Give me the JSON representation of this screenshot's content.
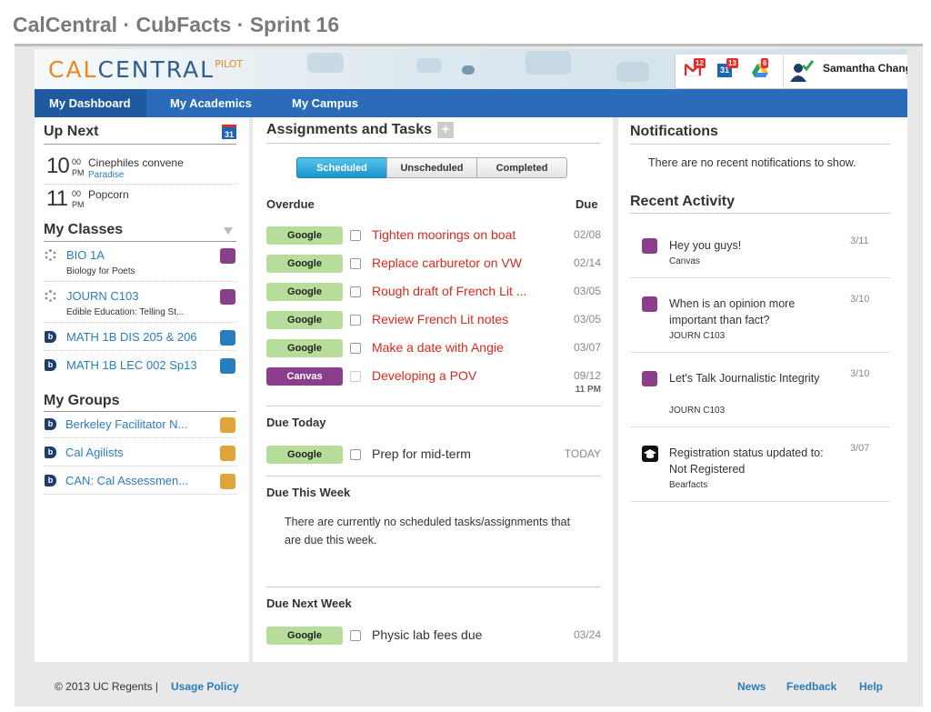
{
  "deck_title": "CalCentral · CubFacts · Sprint 16",
  "brand": {
    "cal": "CAL",
    "central": "CENTRAL",
    "pilot": "PILOT"
  },
  "toolbar": {
    "gmail_count": "12",
    "calendar_count": "13",
    "drive_count": "6",
    "user_name": "Samantha Chang",
    "calendar_icon_text": "31"
  },
  "nav": {
    "tabs": [
      "My Dashboard",
      "My Academics",
      "My Campus"
    ]
  },
  "upnext": {
    "title": "Up Next",
    "calendar_badge": "31",
    "events": [
      {
        "hour": "10",
        "min": "00",
        "ampm": "PM",
        "name": "Cinephiles convene",
        "location": "Paradise"
      },
      {
        "hour": "11",
        "min": "00",
        "ampm": "PM",
        "name": "Popcorn",
        "location": ""
      }
    ]
  },
  "classes": {
    "title": "My Classes",
    "items": [
      {
        "name": "BIO 1A",
        "sub": "Biology for Poets",
        "color": "#8b3e8b",
        "icon": "loading-spinner-icon"
      },
      {
        "name": "JOURN C103",
        "sub": "Edible Education: Telling St...",
        "color": "#8b3e8b",
        "icon": "loading-spinner-icon"
      },
      {
        "name": "MATH 1B DIS 205 & 206",
        "sub": "",
        "color": "#2a7dbd",
        "icon": "bspace-icon"
      },
      {
        "name": "MATH 1B LEC 002 Sp13",
        "sub": "",
        "color": "#2a7dbd",
        "icon": "bspace-icon"
      }
    ]
  },
  "groups": {
    "title": "My Groups",
    "items": [
      {
        "name": "Berkeley Facilitator N...",
        "color": "#e0a43a"
      },
      {
        "name": "Cal Agilists",
        "color": "#e0a43a"
      },
      {
        "name": "CAN: Cal Assessmen...",
        "color": "#e0a43a"
      }
    ]
  },
  "tasks": {
    "title": "Assignments and Tasks",
    "add_label": "+",
    "segments": [
      "Scheduled",
      "Unscheduled",
      "Completed"
    ],
    "overdue_label": "Overdue",
    "due_label": "Due",
    "overdue": [
      {
        "source": "Google",
        "title": "Tighten moorings on boat",
        "due": "02/08"
      },
      {
        "source": "Google",
        "title": "Replace carburetor on VW",
        "due": "02/14"
      },
      {
        "source": "Google",
        "title": "Rough draft of French Lit ...",
        "due": "03/05"
      },
      {
        "source": "Google",
        "title": "Review French Lit notes",
        "due": "03/05"
      },
      {
        "source": "Google",
        "title": "Make a date with Angie",
        "due": "03/07"
      },
      {
        "source": "Canvas",
        "title": "Developing a POV",
        "due": "09/12",
        "due_time": "11 PM"
      }
    ],
    "due_today_label": "Due Today",
    "due_today": [
      {
        "source": "Google",
        "title": "Prep for mid-term",
        "due": "TODAY"
      }
    ],
    "due_week_label": "Due This Week",
    "due_week_empty": "There are currently no scheduled tasks/assignments that are due this week.",
    "due_next_label": "Due Next Week",
    "due_next": [
      {
        "source": "Google",
        "title": "Physic lab fees due",
        "due": "03/24"
      }
    ]
  },
  "notifications": {
    "title": "Notifications",
    "empty": "There are no recent notifications to show."
  },
  "activity": {
    "title": "Recent Activity",
    "items": [
      {
        "title": "Hey you guys!",
        "source": "Canvas",
        "date": "3/11",
        "icon": "canvas-swatch"
      },
      {
        "title": "When is an opinion more important than fact?",
        "source": "JOURN C103",
        "date": "3/10",
        "icon": "canvas-swatch"
      },
      {
        "title": "Let's Talk Journalistic Integrity",
        "source": "JOURN C103",
        "date": "3/10",
        "icon": "canvas-swatch"
      },
      {
        "title": "Registration status updated to: Not Registered",
        "source": "Bearfacts",
        "date": "3/07",
        "icon": "graduation-cap-icon"
      }
    ]
  },
  "footer": {
    "copyright": "© 2013 UC Regents | ",
    "usage_policy": "Usage Policy",
    "news": "News",
    "feedback": "Feedback",
    "help": "Help"
  }
}
